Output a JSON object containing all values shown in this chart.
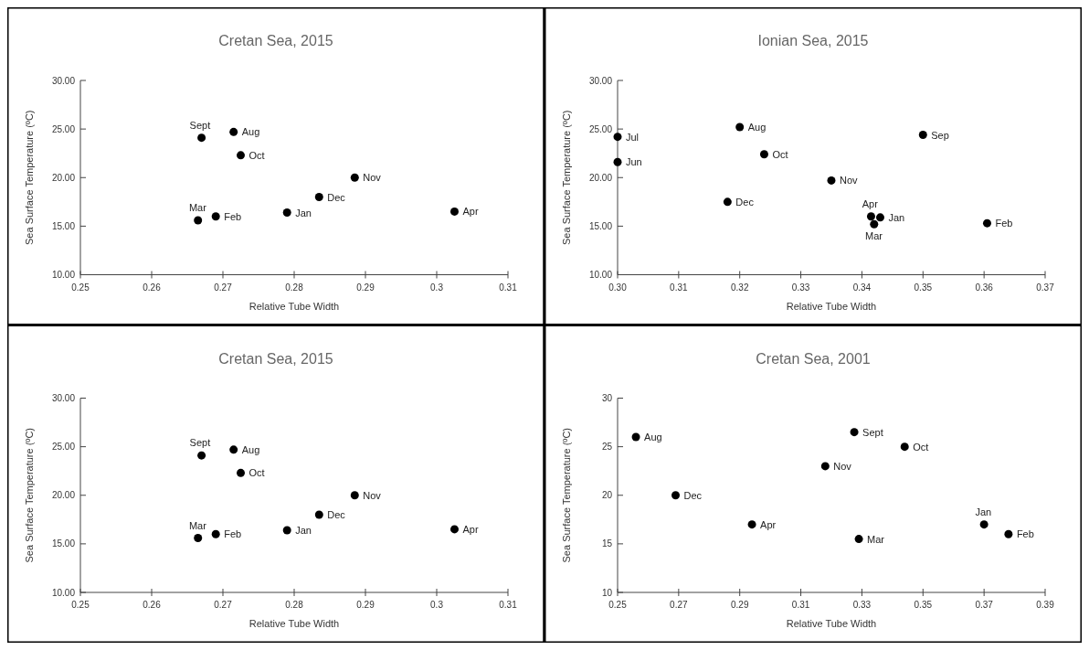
{
  "chart_data": [
    {
      "type": "scatter",
      "title": "Cretan Sea, 2015",
      "xlabel": "Relative Tube Width",
      "ylabel": "Sea Surface Temperature (ºC)",
      "marker": "circle",
      "series": [
        {
          "color": "#000000",
          "x": [
            0.267,
            0.2715,
            0.2725,
            0.2885,
            0.2835,
            0.279,
            0.3025,
            0.269,
            0.2665
          ],
          "values": [
            24.1,
            24.7,
            22.3,
            20.0,
            18.0,
            16.4,
            16.5,
            16.0,
            15.6
          ]
        }
      ],
      "xlim": [
        0.25,
        0.31
      ],
      "xticks": [
        0.25,
        0.26,
        0.27,
        0.28,
        0.29,
        0.3,
        0.31
      ],
      "ylim": [
        10,
        30
      ],
      "yticks": [
        {
          "value": 10,
          "label": "10.00"
        },
        {
          "value": 15,
          "label": "15.00"
        },
        {
          "value": 20,
          "label": "20.00"
        },
        {
          "value": 25,
          "label": "25.00"
        },
        {
          "value": 30,
          "label": "30.00"
        }
      ],
      "annotations": [
        {
          "text": "Sept",
          "x": 0.267,
          "y": 24.1
        },
        {
          "text": "Aug",
          "x": 0.2715,
          "y": 24.7
        },
        {
          "text": "Oct",
          "x": 0.2725,
          "y": 22.3
        },
        {
          "text": "Nov",
          "x": 0.2885,
          "y": 20.0
        },
        {
          "text": "Dec",
          "x": 0.2835,
          "y": 18.0
        },
        {
          "text": "Jan",
          "x": 0.279,
          "y": 16.4
        },
        {
          "text": "Apr",
          "x": 0.3025,
          "y": 16.5
        },
        {
          "text": "Feb",
          "x": 0.269,
          "y": 16.0
        },
        {
          "text": "Mar",
          "x": 0.2665,
          "y": 15.6
        }
      ]
    },
    {
      "type": "scatter",
      "title": "Ionian Sea, 2015",
      "xlabel": "Relative Tube Width",
      "ylabel": "Sea Surface Temperature (ºC)",
      "marker": "circle",
      "series": [
        {
          "color": "#000000",
          "x": [
            0.3,
            0.3,
            0.32,
            0.324,
            0.35,
            0.335,
            0.318,
            0.3415,
            0.343,
            0.342,
            0.3605
          ],
          "values": [
            24.2,
            21.6,
            25.2,
            22.4,
            24.4,
            19.7,
            17.5,
            16.0,
            15.9,
            15.2,
            15.3
          ]
        }
      ],
      "xlim": [
        0.3,
        0.37
      ],
      "xticks": [
        {
          "value": 0.3,
          "label": "0.30"
        },
        {
          "value": 0.31,
          "label": "0.31"
        },
        {
          "value": 0.32,
          "label": "0.32"
        },
        {
          "value": 0.33,
          "label": "0.33"
        },
        {
          "value": 0.34,
          "label": "0.34"
        },
        {
          "value": 0.35,
          "label": "0.35"
        },
        {
          "value": 0.36,
          "label": "0.36"
        },
        {
          "value": 0.37,
          "label": "0.37"
        }
      ],
      "ylim": [
        10,
        30
      ],
      "yticks": [
        {
          "value": 10,
          "label": "10.00"
        },
        {
          "value": 15,
          "label": "15.00"
        },
        {
          "value": 20,
          "label": "20.00"
        },
        {
          "value": 25,
          "label": "25.00"
        },
        {
          "value": 30,
          "label": "30.00"
        }
      ],
      "annotations": [
        {
          "text": "Jul",
          "x": 0.3,
          "y": 24.2
        },
        {
          "text": "Jun",
          "x": 0.3,
          "y": 21.6
        },
        {
          "text": "Aug",
          "x": 0.32,
          "y": 25.2
        },
        {
          "text": "Oct",
          "x": 0.324,
          "y": 22.4
        },
        {
          "text": "Sep",
          "x": 0.35,
          "y": 24.4
        },
        {
          "text": "Nov",
          "x": 0.335,
          "y": 19.7
        },
        {
          "text": "Dec",
          "x": 0.318,
          "y": 17.5
        },
        {
          "text": "Apr",
          "x": 0.3415,
          "y": 16.0
        },
        {
          "text": "Jan",
          "x": 0.343,
          "y": 15.9
        },
        {
          "text": "Mar",
          "x": 0.342,
          "y": 15.2
        },
        {
          "text": "Feb",
          "x": 0.3605,
          "y": 15.3
        }
      ]
    },
    {
      "type": "scatter",
      "title": "Cretan Sea, 2015",
      "xlabel": "Relative Tube Width",
      "ylabel": "Sea Surface Temperature (ºC)",
      "marker": "circle",
      "series": [
        {
          "color": "#000000",
          "x": [
            0.267,
            0.2715,
            0.2725,
            0.2885,
            0.2835,
            0.279,
            0.3025,
            0.269,
            0.2665
          ],
          "values": [
            24.1,
            24.7,
            22.3,
            20.0,
            18.0,
            16.4,
            16.5,
            16.0,
            15.6
          ]
        }
      ],
      "xlim": [
        0.25,
        0.31
      ],
      "xticks": [
        0.25,
        0.26,
        0.27,
        0.28,
        0.29,
        0.3,
        0.31
      ],
      "ylim": [
        10,
        30
      ],
      "yticks": [
        {
          "value": 10,
          "label": "10.00"
        },
        {
          "value": 15,
          "label": "15.00"
        },
        {
          "value": 20,
          "label": "20.00"
        },
        {
          "value": 25,
          "label": "25.00"
        },
        {
          "value": 30,
          "label": "30.00"
        }
      ],
      "annotations": [
        {
          "text": "Sept",
          "x": 0.267,
          "y": 24.1
        },
        {
          "text": "Aug",
          "x": 0.2715,
          "y": 24.7
        },
        {
          "text": "Oct",
          "x": 0.2725,
          "y": 22.3
        },
        {
          "text": "Nov",
          "x": 0.2885,
          "y": 20.0
        },
        {
          "text": "Dec",
          "x": 0.2835,
          "y": 18.0
        },
        {
          "text": "Jan",
          "x": 0.279,
          "y": 16.4
        },
        {
          "text": "Apr",
          "x": 0.3025,
          "y": 16.5
        },
        {
          "text": "Feb",
          "x": 0.269,
          "y": 16.0
        },
        {
          "text": "Mar",
          "x": 0.2665,
          "y": 15.6
        }
      ]
    },
    {
      "type": "scatter",
      "title": "Cretan Sea, 2001",
      "xlabel": "Relative Tube Width",
      "ylabel": "Sea Surface Temperature (ºC)",
      "marker": "circle",
      "series": [
        {
          "color": "#000000",
          "x": [
            0.256,
            0.269,
            0.294,
            0.318,
            0.3275,
            0.344,
            0.329,
            0.37,
            0.378
          ],
          "values": [
            26.0,
            20.0,
            17.0,
            23.0,
            26.5,
            25.0,
            15.5,
            17.0,
            16.0
          ]
        }
      ],
      "xlim": [
        0.25,
        0.39
      ],
      "xticks": [
        0.25,
        0.27,
        0.29,
        0.31,
        0.33,
        0.35,
        0.37,
        0.39
      ],
      "ylim": [
        10,
        30
      ],
      "yticks": [
        10,
        15,
        20,
        25,
        30
      ],
      "annotations": [
        {
          "text": "Aug",
          "x": 0.256,
          "y": 26.0
        },
        {
          "text": "Dec",
          "x": 0.269,
          "y": 20.0
        },
        {
          "text": "Apr",
          "x": 0.294,
          "y": 17.0
        },
        {
          "text": "Nov",
          "x": 0.318,
          "y": 23.0
        },
        {
          "text": "Sept",
          "x": 0.3275,
          "y": 26.5
        },
        {
          "text": "Oct",
          "x": 0.344,
          "y": 25.0
        },
        {
          "text": "Mar",
          "x": 0.329,
          "y": 15.5
        },
        {
          "text": "Jan",
          "x": 0.37,
          "y": 17.0
        },
        {
          "text": "Feb",
          "x": 0.378,
          "y": 16.0
        }
      ]
    }
  ]
}
